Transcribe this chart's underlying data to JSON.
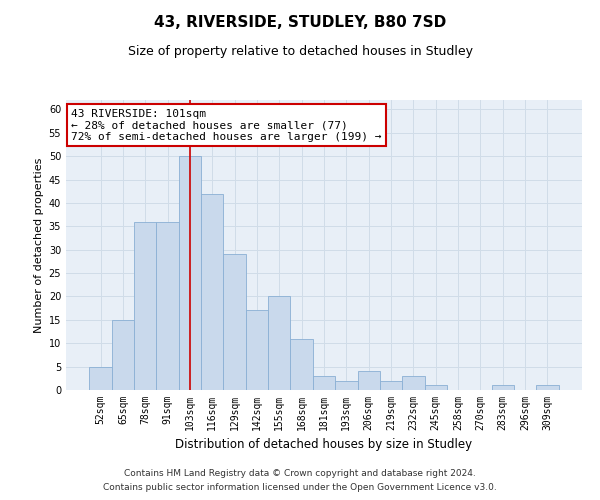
{
  "title": "43, RIVERSIDE, STUDLEY, B80 7SD",
  "subtitle": "Size of property relative to detached houses in Studley",
  "xlabel": "Distribution of detached houses by size in Studley",
  "ylabel": "Number of detached properties",
  "footnote1": "Contains HM Land Registry data © Crown copyright and database right 2024.",
  "footnote2": "Contains public sector information licensed under the Open Government Licence v3.0.",
  "annotation_title": "43 RIVERSIDE: 101sqm",
  "annotation_line1": "← 28% of detached houses are smaller (77)",
  "annotation_line2": "72% of semi-detached houses are larger (199) →",
  "bar_color": "#c9d9ec",
  "bar_edge_color": "#8aafd4",
  "red_line_color": "#cc0000",
  "categories": [
    "52sqm",
    "65sqm",
    "78sqm",
    "91sqm",
    "103sqm",
    "116sqm",
    "129sqm",
    "142sqm",
    "155sqm",
    "168sqm",
    "181sqm",
    "193sqm",
    "206sqm",
    "219sqm",
    "232sqm",
    "245sqm",
    "258sqm",
    "270sqm",
    "283sqm",
    "296sqm",
    "309sqm"
  ],
  "values": [
    5,
    15,
    36,
    36,
    50,
    42,
    29,
    17,
    20,
    11,
    3,
    2,
    4,
    2,
    3,
    1,
    0,
    0,
    1,
    0,
    1
  ],
  "red_line_category": "103sqm",
  "ylim": [
    0,
    62
  ],
  "yticks": [
    0,
    5,
    10,
    15,
    20,
    25,
    30,
    35,
    40,
    45,
    50,
    55,
    60
  ],
  "grid_color": "#d0dce8",
  "background_color": "#e8eff7",
  "annotation_box_color": "#ffffff",
  "annotation_box_edge": "#cc0000",
  "title_fontsize": 11,
  "subtitle_fontsize": 9,
  "xlabel_fontsize": 8.5,
  "ylabel_fontsize": 8,
  "tick_fontsize": 7,
  "annotation_fontsize": 8,
  "footnote_fontsize": 6.5
}
